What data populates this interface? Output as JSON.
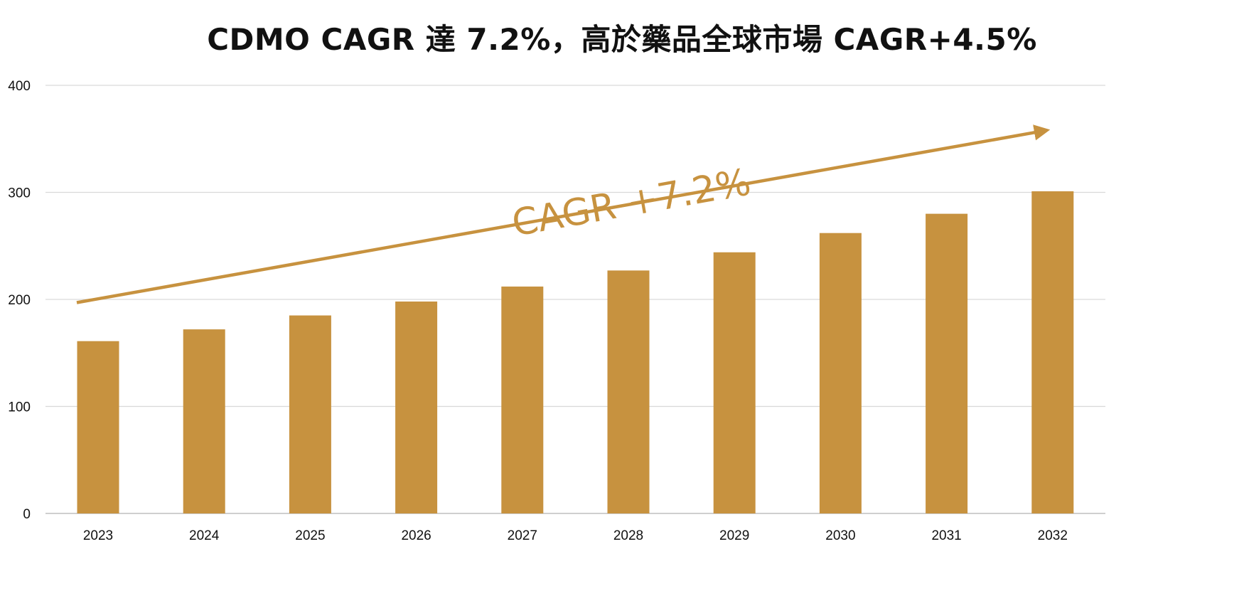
{
  "chart_data": {
    "type": "bar",
    "title": "CDMO CAGR 達 7.2%，高於藥品全球市場 CAGR+4.5%",
    "categories": [
      "2023",
      "2024",
      "2025",
      "2026",
      "2027",
      "2028",
      "2029",
      "2030",
      "2031",
      "2032"
    ],
    "values": [
      161,
      172,
      185,
      198,
      212,
      227,
      244,
      262,
      280,
      301
    ],
    "ylim": [
      0,
      400
    ],
    "yticks": [
      0,
      100,
      200,
      300,
      400
    ],
    "xlabel": "",
    "ylabel": "",
    "grid": true,
    "legend": "none",
    "bar_color": "#c7923f",
    "trend_arrow": {
      "label": "CAGR +7.2%",
      "start": {
        "x": "2023",
        "y": 197
      },
      "end": {
        "x": "2032",
        "y": 358
      }
    }
  },
  "colors": {
    "bar": "#c7923f",
    "grid": "#d9d9d9",
    "axis": "#bfbfbf",
    "text": "#111111"
  }
}
